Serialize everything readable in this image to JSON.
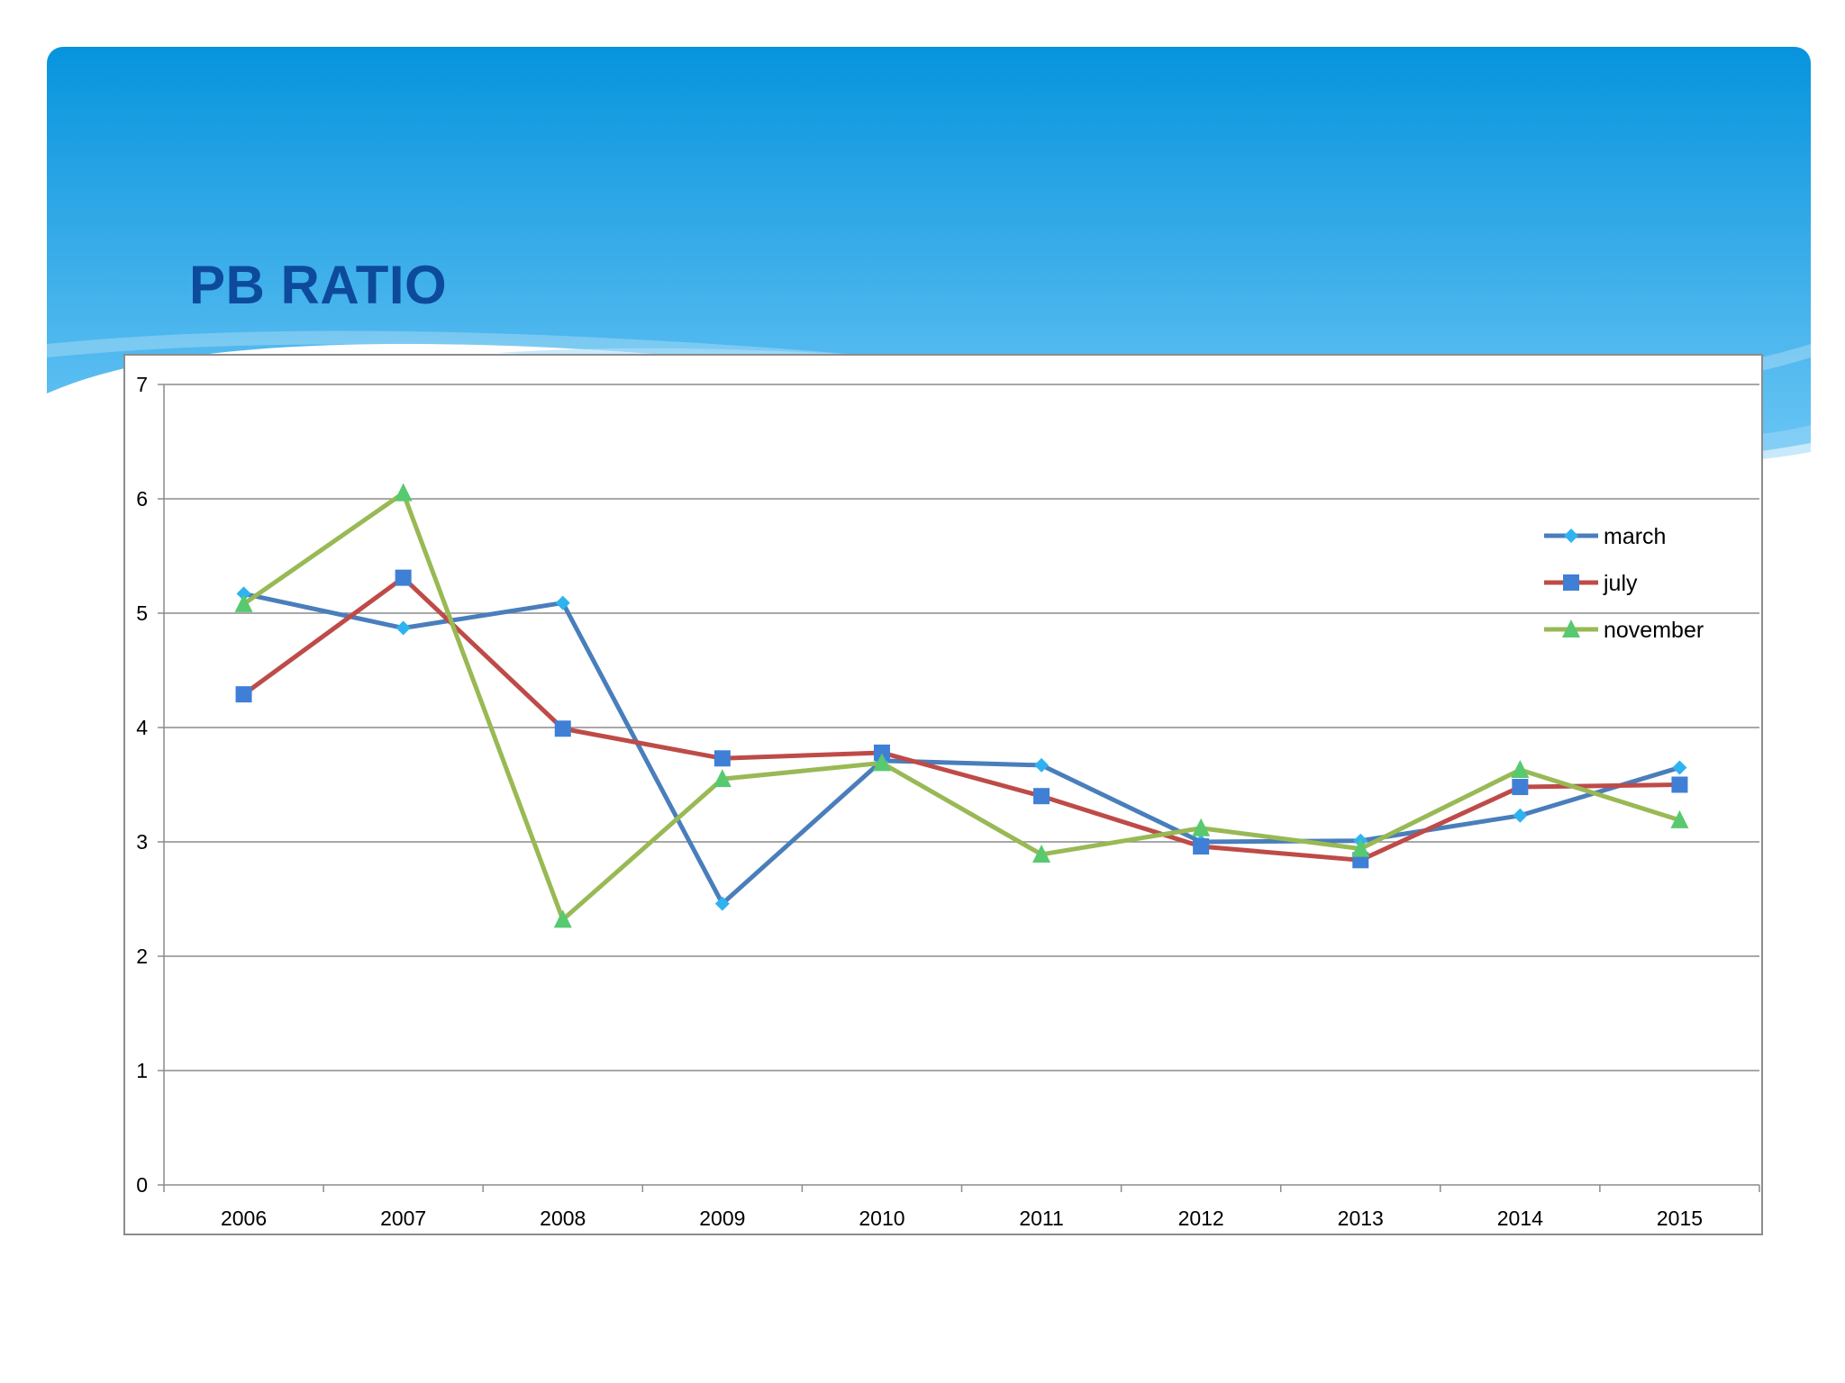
{
  "slide": {
    "title": "PB RATIO"
  },
  "colors": {
    "header_top": "#0794dd",
    "header_bottom": "#6cc6f5",
    "title": "#0d4a9c",
    "grid": "#8c8c8c"
  },
  "chart_data": {
    "type": "line",
    "title": "",
    "xlabel": "",
    "ylabel": "",
    "categories": [
      "2006",
      "2007",
      "2008",
      "2009",
      "2010",
      "2011",
      "2012",
      "2013",
      "2014",
      "2015"
    ],
    "ylim": [
      0,
      7
    ],
    "yticks": [
      "0",
      "1",
      "2",
      "3",
      "4",
      "5",
      "6",
      "7"
    ],
    "grid": true,
    "legend_position": "top-right",
    "series": [
      {
        "name": "march",
        "marker": "diamond",
        "line_color": "#4a7ebb",
        "marker_color": "#2fb3f0",
        "values": [
          5.17,
          4.87,
          5.09,
          2.46,
          3.71,
          3.67,
          3.0,
          3.01,
          3.23,
          3.65
        ]
      },
      {
        "name": "july",
        "marker": "square",
        "line_color": "#be4b48",
        "marker_color": "#3f7fd6",
        "values": [
          4.29,
          5.31,
          3.99,
          3.73,
          3.78,
          3.4,
          2.96,
          2.84,
          3.48,
          3.5
        ]
      },
      {
        "name": "november",
        "marker": "triangle",
        "line_color": "#98b954",
        "marker_color": "#57c96f",
        "values": [
          5.08,
          6.05,
          2.32,
          3.55,
          3.69,
          2.89,
          3.12,
          2.94,
          3.63,
          3.19
        ]
      }
    ]
  }
}
